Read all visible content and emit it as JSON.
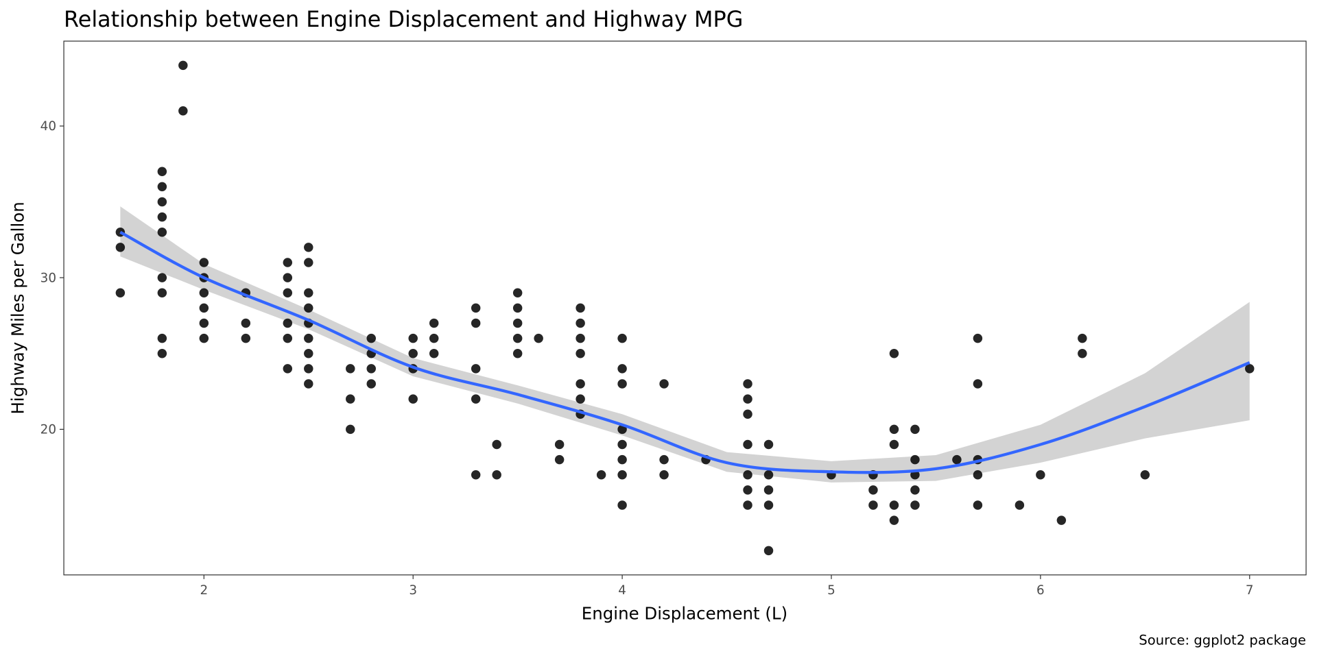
{
  "chart_data": {
    "type": "scatter",
    "title": "Relationship between Engine Displacement and Highway MPG",
    "xlabel": "Engine Displacement (L)",
    "ylabel": "Highway Miles per Gallon",
    "caption": "Source: ggplot2 package",
    "xlim": [
      1.33,
      7.27
    ],
    "ylim": [
      10.4,
      45.6
    ],
    "xticks": [
      "2",
      "3",
      "4",
      "5",
      "6",
      "7"
    ],
    "yticks": [
      "20",
      "30",
      "40"
    ],
    "grid": false,
    "point_color": "#000000",
    "smooth_color": "#3366FF",
    "band_color": "#D3D3D3",
    "points": [
      [
        1.6,
        33
      ],
      [
        1.6,
        32
      ],
      [
        1.6,
        29
      ],
      [
        1.8,
        37
      ],
      [
        1.8,
        36
      ],
      [
        1.8,
        35
      ],
      [
        1.8,
        34
      ],
      [
        1.8,
        33
      ],
      [
        1.8,
        30
      ],
      [
        1.8,
        29
      ],
      [
        1.8,
        26
      ],
      [
        1.8,
        25
      ],
      [
        1.9,
        44
      ],
      [
        1.9,
        41
      ],
      [
        2.0,
        31
      ],
      [
        2.0,
        30
      ],
      [
        2.0,
        29
      ],
      [
        2.0,
        28
      ],
      [
        2.0,
        27
      ],
      [
        2.0,
        26
      ],
      [
        2.2,
        29
      ],
      [
        2.2,
        27
      ],
      [
        2.2,
        26
      ],
      [
        2.4,
        31
      ],
      [
        2.4,
        30
      ],
      [
        2.4,
        29
      ],
      [
        2.4,
        27
      ],
      [
        2.4,
        26
      ],
      [
        2.4,
        24
      ],
      [
        2.5,
        32
      ],
      [
        2.5,
        31
      ],
      [
        2.5,
        29
      ],
      [
        2.5,
        28
      ],
      [
        2.5,
        27
      ],
      [
        2.5,
        26
      ],
      [
        2.5,
        25
      ],
      [
        2.5,
        24
      ],
      [
        2.5,
        23
      ],
      [
        2.7,
        24
      ],
      [
        2.7,
        22
      ],
      [
        2.7,
        20
      ],
      [
        2.8,
        26
      ],
      [
        2.8,
        25
      ],
      [
        2.8,
        24
      ],
      [
        2.8,
        23
      ],
      [
        3.0,
        26
      ],
      [
        3.0,
        25
      ],
      [
        3.0,
        24
      ],
      [
        3.0,
        22
      ],
      [
        3.1,
        27
      ],
      [
        3.1,
        26
      ],
      [
        3.1,
        25
      ],
      [
        3.3,
        28
      ],
      [
        3.3,
        27
      ],
      [
        3.3,
        24
      ],
      [
        3.3,
        22
      ],
      [
        3.3,
        17
      ],
      [
        3.4,
        19
      ],
      [
        3.4,
        17
      ],
      [
        3.5,
        29
      ],
      [
        3.5,
        28
      ],
      [
        3.5,
        27
      ],
      [
        3.5,
        26
      ],
      [
        3.5,
        25
      ],
      [
        3.6,
        26
      ],
      [
        3.7,
        19
      ],
      [
        3.7,
        18
      ],
      [
        3.8,
        28
      ],
      [
        3.8,
        27
      ],
      [
        3.8,
        26
      ],
      [
        3.8,
        25
      ],
      [
        3.8,
        23
      ],
      [
        3.8,
        22
      ],
      [
        3.8,
        21
      ],
      [
        3.9,
        17
      ],
      [
        4.0,
        26
      ],
      [
        4.0,
        24
      ],
      [
        4.0,
        23
      ],
      [
        4.0,
        20
      ],
      [
        4.0,
        19
      ],
      [
        4.0,
        18
      ],
      [
        4.0,
        17
      ],
      [
        4.0,
        15
      ],
      [
        4.2,
        23
      ],
      [
        4.2,
        18
      ],
      [
        4.2,
        17
      ],
      [
        4.4,
        18
      ],
      [
        4.6,
        23
      ],
      [
        4.6,
        22
      ],
      [
        4.6,
        21
      ],
      [
        4.6,
        19
      ],
      [
        4.6,
        17
      ],
      [
        4.6,
        16
      ],
      [
        4.6,
        15
      ],
      [
        4.7,
        19
      ],
      [
        4.7,
        17
      ],
      [
        4.7,
        16
      ],
      [
        4.7,
        15
      ],
      [
        4.7,
        12
      ],
      [
        5.0,
        17
      ],
      [
        5.2,
        17
      ],
      [
        5.2,
        16
      ],
      [
        5.2,
        15
      ],
      [
        5.3,
        25
      ],
      [
        5.3,
        20
      ],
      [
        5.3,
        19
      ],
      [
        5.3,
        15
      ],
      [
        5.3,
        14
      ],
      [
        5.4,
        20
      ],
      [
        5.4,
        18
      ],
      [
        5.4,
        17
      ],
      [
        5.4,
        16
      ],
      [
        5.4,
        15
      ],
      [
        5.6,
        18
      ],
      [
        5.7,
        26
      ],
      [
        5.7,
        23
      ],
      [
        5.7,
        18
      ],
      [
        5.7,
        17
      ],
      [
        5.7,
        15
      ],
      [
        5.9,
        15
      ],
      [
        6.0,
        17
      ],
      [
        6.1,
        14
      ],
      [
        6.2,
        26
      ],
      [
        6.2,
        25
      ],
      [
        6.5,
        17
      ],
      [
        7.0,
        24
      ]
    ],
    "smooth": {
      "x": [
        1.6,
        2.0,
        2.5,
        3.0,
        3.5,
        4.0,
        4.5,
        5.0,
        5.5,
        6.0,
        6.5,
        7.0
      ],
      "y": [
        33.0,
        30.0,
        27.2,
        24.1,
        22.3,
        20.3,
        17.8,
        17.2,
        17.4,
        19.0,
        21.5,
        24.4
      ],
      "lower": [
        31.4,
        29.2,
        26.6,
        23.5,
        21.7,
        19.6,
        17.2,
        16.5,
        16.6,
        17.8,
        19.4,
        20.6
      ],
      "upper": [
        34.7,
        30.9,
        27.9,
        24.7,
        22.9,
        21.0,
        18.5,
        17.9,
        18.3,
        20.3,
        23.7,
        28.4
      ]
    }
  }
}
